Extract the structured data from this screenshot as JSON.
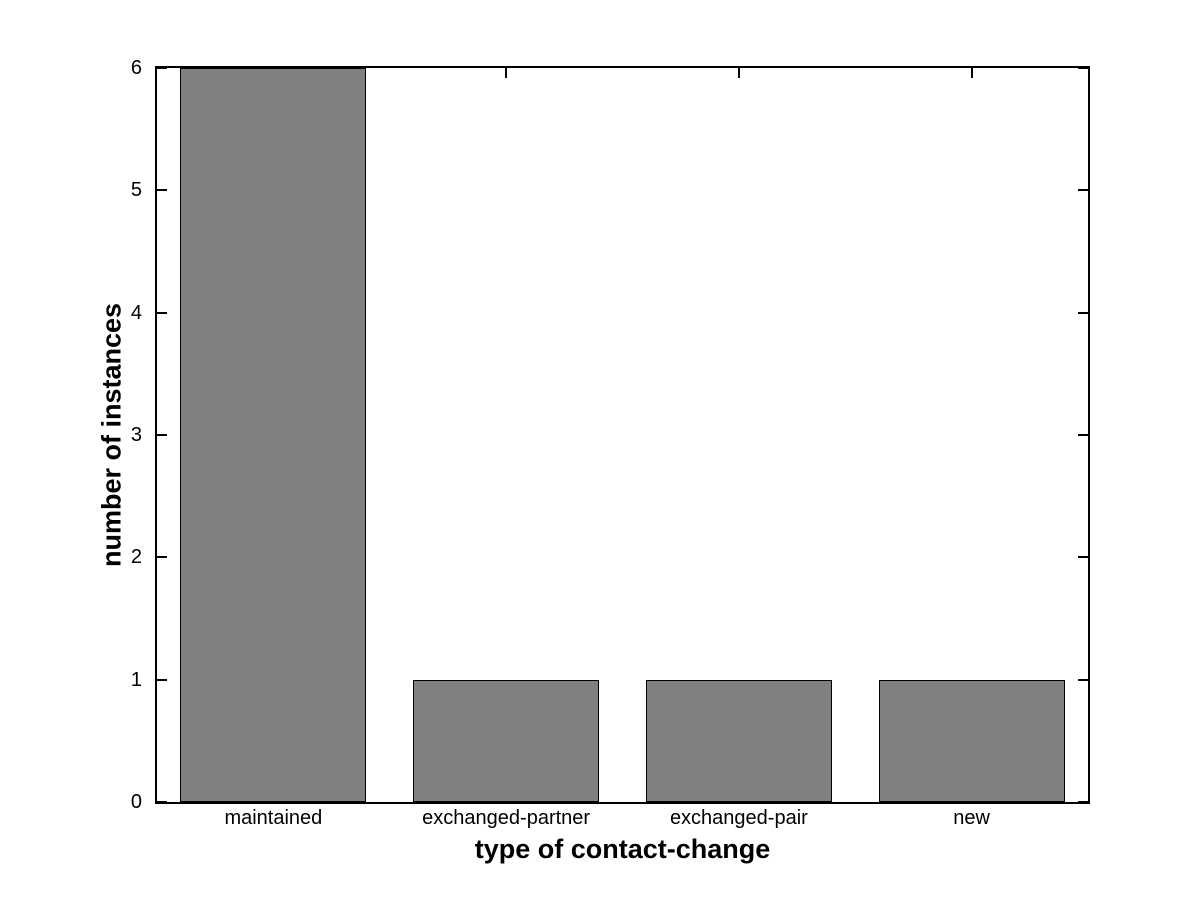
{
  "chart_data": {
    "type": "bar",
    "categories": [
      "maintained",
      "exchanged-partner",
      "exchanged-pair",
      "new"
    ],
    "values": [
      6,
      1,
      1,
      1
    ],
    "title": "",
    "xlabel": "type of contact-change",
    "ylabel": "number of instances",
    "ylim": [
      0,
      6
    ],
    "yticks": [
      0,
      1,
      2,
      3,
      4,
      5,
      6
    ],
    "bar_width_fraction": 0.8,
    "grid": false,
    "legend": null,
    "colors": {
      "bar_fill": "#808080",
      "bar_edge": "#000000",
      "axis": "#000000",
      "background": "#ffffff",
      "text": "#000000"
    }
  }
}
